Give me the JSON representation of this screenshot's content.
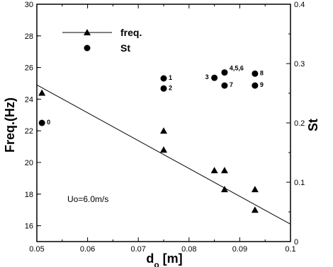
{
  "chart_data": {
    "type": "scatter",
    "title": "",
    "xlabel": "d",
    "xlabel_subscript": "o",
    "xlabel_unit": " [m]",
    "ylabel": "Freq.(Hz)",
    "y2label": "St",
    "xlim": [
      0.05,
      0.1
    ],
    "ylim": [
      15,
      30
    ],
    "y2lim": [
      0,
      0.4
    ],
    "xticks": [
      0.05,
      0.06,
      0.07,
      0.08,
      0.09,
      0.1
    ],
    "xtick_labels": [
      "0.05",
      "0.06",
      "0.07",
      "0.08",
      "0.09",
      "0.1"
    ],
    "yticks": [
      16,
      18,
      20,
      22,
      24,
      26,
      28,
      30
    ],
    "ytick_labels": [
      "16",
      "18",
      "20",
      "22",
      "24",
      "26",
      "28",
      "30"
    ],
    "y2ticks": [
      0,
      0.1,
      0.2,
      0.3,
      0.4
    ],
    "y2tick_labels": [
      "0",
      "0.1",
      "0.2",
      "0.3",
      "0.4"
    ],
    "grid": false,
    "legend_position": "top-left",
    "annotation": "Uo=6.0m/s",
    "series": [
      {
        "name": "freq.",
        "axis": "left",
        "marker": "triangle",
        "points": [
          {
            "x": 0.051,
            "y": 24.4
          },
          {
            "x": 0.075,
            "y": 22.0
          },
          {
            "x": 0.075,
            "y": 20.8
          },
          {
            "x": 0.085,
            "y": 19.5
          },
          {
            "x": 0.087,
            "y": 19.5
          },
          {
            "x": 0.087,
            "y": 18.3
          },
          {
            "x": 0.093,
            "y": 18.3
          },
          {
            "x": 0.093,
            "y": 17.0
          }
        ],
        "fit_line": {
          "x": [
            0.05,
            0.1
          ],
          "y": [
            24.9,
            16.1
          ]
        }
      },
      {
        "name": "St",
        "axis": "right",
        "marker": "circle",
        "points": [
          {
            "x": 0.051,
            "y": 0.2,
            "label": "0"
          },
          {
            "x": 0.075,
            "y": 0.275,
            "label": "1"
          },
          {
            "x": 0.075,
            "y": 0.258,
            "label": "2"
          },
          {
            "x": 0.085,
            "y": 0.276,
            "label": "3"
          },
          {
            "x": 0.087,
            "y": 0.285,
            "label": "4,5,6"
          },
          {
            "x": 0.087,
            "y": 0.263,
            "label": "7"
          },
          {
            "x": 0.093,
            "y": 0.283,
            "label": "8"
          },
          {
            "x": 0.093,
            "y": 0.263,
            "label": "9"
          }
        ]
      }
    ]
  }
}
